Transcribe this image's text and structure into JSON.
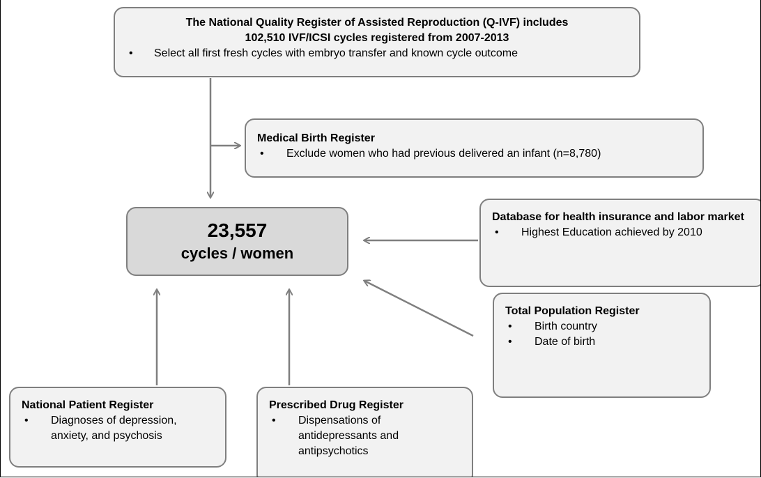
{
  "nodes": [
    {
      "title_lines": [
        "The National Quality Register of Assisted Reproduction (Q-IVF) includes",
        "102,510 IVF/ICSI cycles registered from 2007-2013"
      ],
      "bullets": [
        "Select all first fresh cycles with embryo transfer and known cycle outcome"
      ]
    },
    {
      "title": "Medical Birth Register",
      "bullets": [
        "Exclude women who had previous delivered an infant (n=8,780)"
      ]
    },
    {
      "value": "23,557",
      "label": "cycles / women"
    },
    {
      "title": "Database for health insurance and labor market",
      "bullets": [
        "Highest Education achieved by 2010"
      ]
    },
    {
      "title": "Total Population Register",
      "bullets": [
        "Birth country",
        "Date of birth"
      ]
    },
    {
      "title": "National Patient Register",
      "bullets": [
        "Diagnoses of depression, anxiety, and psychosis"
      ]
    },
    {
      "title": "Prescribed Drug Register",
      "bullets": [
        "Dispensations of antidepressants and antipsychotics"
      ]
    }
  ]
}
